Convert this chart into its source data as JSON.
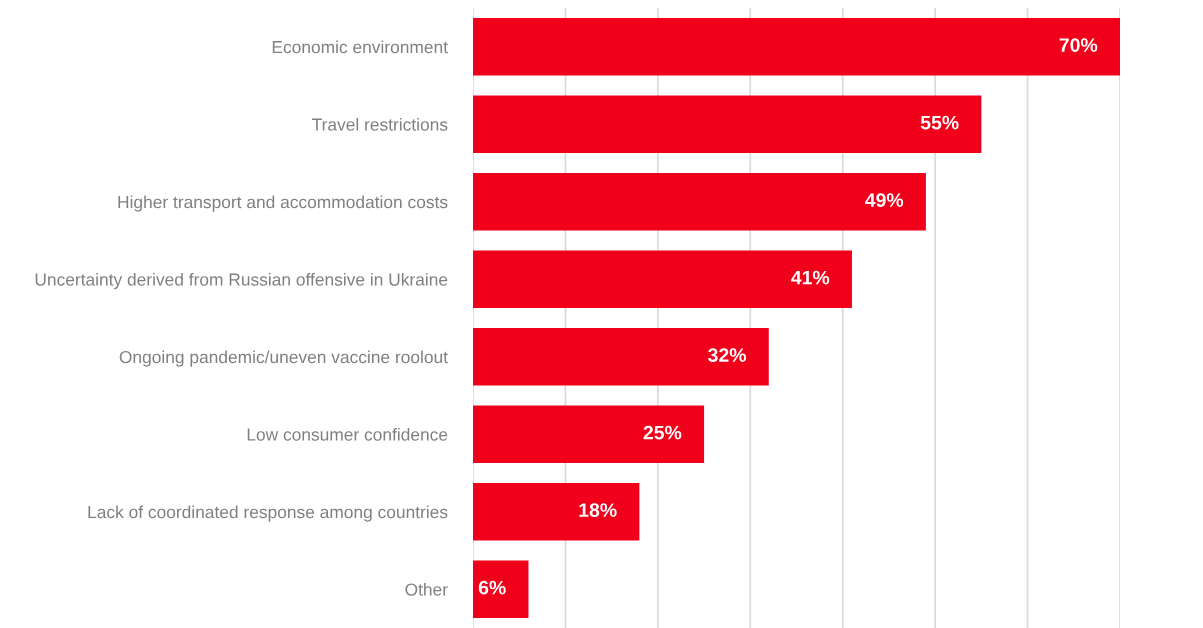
{
  "chart_data": {
    "type": "bar",
    "orientation": "horizontal",
    "categories": [
      "Economic environment",
      "Travel restrictions",
      "Higher transport and accommodation costs",
      "Uncertainty derived from Russian offensive in Ukraine",
      "Ongoing pandemic/uneven vaccine roolout",
      "Low consumer confidence",
      "Lack of coordinated response among countries",
      "Other"
    ],
    "values": [
      70,
      55,
      49,
      41,
      32,
      25,
      18,
      6
    ],
    "value_labels": [
      "70%",
      "55%",
      "49%",
      "41%",
      "32%",
      "25%",
      "18%",
      "6%"
    ],
    "color": "#f0001a",
    "xlim": [
      0,
      70
    ],
    "xticks": [
      {
        "value": 0,
        "label": null
      },
      {
        "value": 10,
        "label": null
      },
      {
        "value": 20,
        "label": null
      },
      {
        "value": 30,
        "label": null
      },
      {
        "value": 40,
        "label": null
      },
      {
        "value": 50,
        "label": null
      },
      {
        "value": 60,
        "label": null
      },
      {
        "value": 70,
        "label": null
      }
    ],
    "grid": "x",
    "tick_labels": "y"
  }
}
